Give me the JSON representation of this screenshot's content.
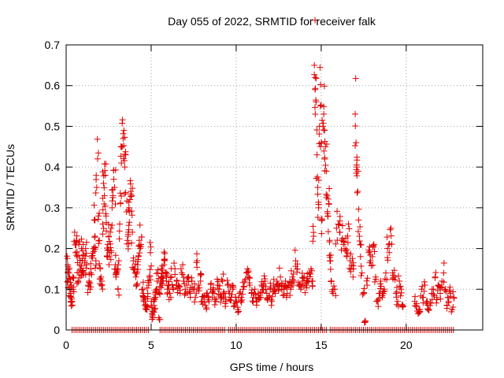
{
  "chart_data": {
    "type": "scatter",
    "title": "Day 055 of 2022, SRMTID for receiver falk",
    "xlabel": "GPS time / hours",
    "ylabel": "SRMTID / TECUs",
    "xlim": [
      0,
      24.5
    ],
    "ylim": [
      0,
      0.7
    ],
    "xticks": [
      0,
      5,
      10,
      15,
      20
    ],
    "yticks": [
      0,
      0.1,
      0.2,
      0.3,
      0.4,
      0.5,
      0.6,
      0.7
    ],
    "xtick_labels": [
      "0",
      "5",
      "10",
      "15",
      "20"
    ],
    "ytick_labels": [
      "0",
      "0.1",
      "0.2",
      "0.3",
      "0.4",
      "0.5",
      "0.6",
      "0.7"
    ],
    "grid": true,
    "marker": "+",
    "series_color": "#e00000",
    "baseline_zero": {
      "x_start": 0.35,
      "x_end": 22.8,
      "step": 0.115,
      "gaps": [
        [
          4.9,
          5.45
        ],
        [
          9.35,
          9.55
        ],
        [
          15.4,
          15.5
        ]
      ]
    },
    "series": [
      {
        "name": "SRMTID",
        "points": [
          [
            0.1,
            0.12
          ],
          [
            0.1,
            0.16
          ],
          [
            0.15,
            0.14
          ],
          [
            0.2,
            0.1
          ],
          [
            0.2,
            0.13
          ],
          [
            0.25,
            0.09
          ],
          [
            0.3,
            0.08
          ],
          [
            0.3,
            0.11
          ],
          [
            0.35,
            0.07
          ],
          [
            0.4,
            0.1
          ],
          [
            0.4,
            0.13
          ],
          [
            0.5,
            0.24
          ],
          [
            0.55,
            0.19
          ],
          [
            0.6,
            0.22
          ],
          [
            0.65,
            0.18
          ],
          [
            0.7,
            0.12
          ],
          [
            0.75,
            0.21
          ],
          [
            0.8,
            0.16
          ],
          [
            0.85,
            0.15
          ],
          [
            0.9,
            0.2
          ],
          [
            0.95,
            0.17
          ],
          [
            1.0,
            0.21
          ],
          [
            1.05,
            0.14
          ],
          [
            1.1,
            0.17
          ],
          [
            1.15,
            0.2
          ],
          [
            1.2,
            0.16
          ],
          [
            1.3,
            0.11
          ],
          [
            1.35,
            0.12
          ],
          [
            1.4,
            0.1
          ],
          [
            1.45,
            0.14
          ],
          [
            1.5,
            0.18
          ],
          [
            1.6,
            0.2
          ],
          [
            1.65,
            0.27
          ],
          [
            1.7,
            0.23
          ],
          [
            1.75,
            0.17
          ],
          [
            1.8,
            0.35
          ],
          [
            1.85,
            0.42
          ],
          [
            1.9,
            0.28
          ],
          [
            1.95,
            0.22
          ],
          [
            2.0,
            0.15
          ],
          [
            2.05,
            0.13
          ],
          [
            2.1,
            0.12
          ],
          [
            2.15,
            0.26
          ],
          [
            2.2,
            0.36
          ],
          [
            2.25,
            0.33
          ],
          [
            2.3,
            0.38
          ],
          [
            2.35,
            0.28
          ],
          [
            2.4,
            0.18
          ],
          [
            2.45,
            0.21
          ],
          [
            2.5,
            0.23
          ],
          [
            2.55,
            0.19
          ],
          [
            2.6,
            0.24
          ],
          [
            2.65,
            0.19
          ],
          [
            2.7,
            0.3
          ],
          [
            2.75,
            0.33
          ],
          [
            2.8,
            0.37
          ],
          [
            2.85,
            0.35
          ],
          [
            2.9,
            0.16
          ],
          [
            2.95,
            0.14
          ],
          [
            3.0,
            0.15
          ],
          [
            3.05,
            0.1
          ],
          [
            3.1,
            0.17
          ],
          [
            3.15,
            0.26
          ],
          [
            3.2,
            0.31
          ],
          [
            3.25,
            0.41
          ],
          [
            3.3,
            0.45
          ],
          [
            3.35,
            0.47
          ],
          [
            3.4,
            0.49
          ],
          [
            3.45,
            0.4
          ],
          [
            3.5,
            0.43
          ],
          [
            3.55,
            0.29
          ],
          [
            3.6,
            0.22
          ],
          [
            3.65,
            0.24
          ],
          [
            3.7,
            0.3
          ],
          [
            3.75,
            0.32
          ],
          [
            3.8,
            0.34
          ],
          [
            3.85,
            0.33
          ],
          [
            3.9,
            0.24
          ],
          [
            3.95,
            0.17
          ],
          [
            4.0,
            0.15
          ],
          [
            4.05,
            0.14
          ],
          [
            4.1,
            0.13
          ],
          [
            4.15,
            0.11
          ],
          [
            4.2,
            0.16
          ],
          [
            4.25,
            0.18
          ],
          [
            4.3,
            0.22
          ],
          [
            4.35,
            0.2
          ],
          [
            4.4,
            0.21
          ],
          [
            4.5,
            0.1
          ],
          [
            4.55,
            0.09
          ],
          [
            4.6,
            0.08
          ],
          [
            4.65,
            0.07
          ],
          [
            4.7,
            0.06
          ],
          [
            4.75,
            0.05
          ],
          [
            4.8,
            0.09
          ],
          [
            4.85,
            0.11
          ],
          [
            4.9,
            0.13
          ],
          [
            4.95,
            0.19
          ],
          [
            5.0,
            0.06
          ],
          [
            5.05,
            0.04
          ],
          [
            5.1,
            0.03
          ],
          [
            5.15,
            0.07
          ],
          [
            5.2,
            0.05
          ],
          [
            5.25,
            0.08
          ],
          [
            5.3,
            0.1
          ],
          [
            5.35,
            0.12
          ],
          [
            5.4,
            0.14
          ],
          [
            5.45,
            0.03
          ],
          [
            5.5,
            0.09
          ],
          [
            5.55,
            0.12
          ],
          [
            5.6,
            0.15
          ],
          [
            5.65,
            0.11
          ],
          [
            5.7,
            0.13
          ],
          [
            5.75,
            0.16
          ],
          [
            5.8,
            0.17
          ],
          [
            5.85,
            0.14
          ],
          [
            5.9,
            0.12
          ],
          [
            5.95,
            0.1
          ],
          [
            6.0,
            0.11
          ],
          [
            6.1,
            0.09
          ],
          [
            6.2,
            0.13
          ],
          [
            6.3,
            0.1
          ],
          [
            6.4,
            0.15
          ],
          [
            6.5,
            0.12
          ],
          [
            6.6,
            0.11
          ],
          [
            6.7,
            0.09
          ],
          [
            6.8,
            0.14
          ],
          [
            6.9,
            0.12
          ],
          [
            7.0,
            0.1
          ],
          [
            7.1,
            0.11
          ],
          [
            7.2,
            0.13
          ],
          [
            7.3,
            0.09
          ],
          [
            7.4,
            0.12
          ],
          [
            7.5,
            0.1
          ],
          [
            7.6,
            0.08
          ],
          [
            7.7,
            0.17
          ],
          [
            7.8,
            0.11
          ],
          [
            7.9,
            0.12
          ],
          [
            8.0,
            0.07
          ],
          [
            8.1,
            0.08
          ],
          [
            8.2,
            0.06
          ],
          [
            8.3,
            0.09
          ],
          [
            8.4,
            0.07
          ],
          [
            8.5,
            0.1
          ],
          [
            8.6,
            0.08
          ],
          [
            8.7,
            0.09
          ],
          [
            8.8,
            0.07
          ],
          [
            8.9,
            0.11
          ],
          [
            9.0,
            0.1
          ],
          [
            9.1,
            0.08
          ],
          [
            9.2,
            0.12
          ],
          [
            9.3,
            0.09
          ],
          [
            9.4,
            0.07
          ],
          [
            9.5,
            0.11
          ],
          [
            9.6,
            0.09
          ],
          [
            9.7,
            0.08
          ],
          [
            9.8,
            0.1
          ],
          [
            9.9,
            0.06
          ],
          [
            10.0,
            0.07
          ],
          [
            10.1,
            0.05
          ],
          [
            10.2,
            0.09
          ],
          [
            10.3,
            0.08
          ],
          [
            10.4,
            0.1
          ],
          [
            10.5,
            0.12
          ],
          [
            10.6,
            0.14
          ],
          [
            10.7,
            0.13
          ],
          [
            10.8,
            0.11
          ],
          [
            10.9,
            0.09
          ],
          [
            11.0,
            0.08
          ],
          [
            11.1,
            0.1
          ],
          [
            11.2,
            0.07
          ],
          [
            11.3,
            0.09
          ],
          [
            11.4,
            0.08
          ],
          [
            11.5,
            0.11
          ],
          [
            11.6,
            0.1
          ],
          [
            11.7,
            0.12
          ],
          [
            11.8,
            0.09
          ],
          [
            11.9,
            0.08
          ],
          [
            12.0,
            0.1
          ],
          [
            12.1,
            0.07
          ],
          [
            12.2,
            0.11
          ],
          [
            12.3,
            0.09
          ],
          [
            12.4,
            0.12
          ],
          [
            12.5,
            0.1
          ],
          [
            12.6,
            0.13
          ],
          [
            12.7,
            0.11
          ],
          [
            12.8,
            0.1
          ],
          [
            12.9,
            0.12
          ],
          [
            13.0,
            0.09
          ],
          [
            13.1,
            0.11
          ],
          [
            13.2,
            0.1
          ],
          [
            13.3,
            0.13
          ],
          [
            13.4,
            0.12
          ],
          [
            13.5,
            0.17
          ],
          [
            13.6,
            0.15
          ],
          [
            13.7,
            0.11
          ],
          [
            13.8,
            0.1
          ],
          [
            13.9,
            0.12
          ],
          [
            14.0,
            0.13
          ],
          [
            14.1,
            0.11
          ],
          [
            14.2,
            0.12
          ],
          [
            14.3,
            0.14
          ],
          [
            14.4,
            0.15
          ],
          [
            14.5,
            0.12
          ],
          [
            14.55,
            0.23
          ],
          [
            14.6,
            0.65
          ],
          [
            14.65,
            0.62
          ],
          [
            14.7,
            0.56
          ],
          [
            14.75,
            0.43
          ],
          [
            14.8,
            0.35
          ],
          [
            14.85,
            0.3
          ],
          [
            14.9,
            0.5
          ],
          [
            14.95,
            0.55
          ],
          [
            15.0,
            0.46
          ],
          [
            15.05,
            0.27
          ],
          [
            15.1,
            0.5
          ],
          [
            15.15,
            0.53
          ],
          [
            15.2,
            0.49
          ],
          [
            15.25,
            0.45
          ],
          [
            15.3,
            0.39
          ],
          [
            15.35,
            0.33
          ],
          [
            15.4,
            0.28
          ],
          [
            15.45,
            0.31
          ],
          [
            15.5,
            0.22
          ],
          [
            15.55,
            0.17
          ],
          [
            15.6,
            0.12
          ],
          [
            15.7,
            0.09
          ],
          [
            15.8,
            0.1
          ],
          [
            15.9,
            0.25
          ],
          [
            16.0,
            0.26
          ],
          [
            16.1,
            0.24
          ],
          [
            16.2,
            0.22
          ],
          [
            16.3,
            0.21
          ],
          [
            16.4,
            0.2
          ],
          [
            16.5,
            0.18
          ],
          [
            16.6,
            0.26
          ],
          [
            16.7,
            0.17
          ],
          [
            16.8,
            0.16
          ],
          [
            16.9,
            0.15
          ],
          [
            17.0,
            0.53
          ],
          [
            17.05,
            0.46
          ],
          [
            17.1,
            0.4
          ],
          [
            17.15,
            0.34
          ],
          [
            17.2,
            0.27
          ],
          [
            17.25,
            0.23
          ],
          [
            17.3,
            0.21
          ],
          [
            17.4,
            0.14
          ],
          [
            17.5,
            0.09
          ],
          [
            17.6,
            0.02
          ],
          [
            17.7,
            0.11
          ],
          [
            17.8,
            0.19
          ],
          [
            17.9,
            0.17
          ],
          [
            18.0,
            0.18
          ],
          [
            18.1,
            0.21
          ],
          [
            18.2,
            0.13
          ],
          [
            18.3,
            0.07
          ],
          [
            18.4,
            0.09
          ],
          [
            18.5,
            0.12
          ],
          [
            18.6,
            0.08
          ],
          [
            18.7,
            0.1
          ],
          [
            18.8,
            0.14
          ],
          [
            18.9,
            0.2
          ],
          [
            19.0,
            0.19
          ],
          [
            19.1,
            0.25
          ],
          [
            19.2,
            0.14
          ],
          [
            19.3,
            0.13
          ],
          [
            19.4,
            0.09
          ],
          [
            19.5,
            0.07
          ],
          [
            19.6,
            0.12
          ],
          [
            19.7,
            0.1
          ],
          [
            19.8,
            0.06
          ],
          [
            20.5,
            0.07
          ],
          [
            20.6,
            0.06
          ],
          [
            20.7,
            0.04
          ],
          [
            20.8,
            0.05
          ],
          [
            20.9,
            0.1
          ],
          [
            21.0,
            0.08
          ],
          [
            21.1,
            0.11
          ],
          [
            21.2,
            0.07
          ],
          [
            21.3,
            0.05
          ],
          [
            21.4,
            0.06
          ],
          [
            21.5,
            0.09
          ],
          [
            21.6,
            0.1
          ],
          [
            21.7,
            0.13
          ],
          [
            21.8,
            0.08
          ],
          [
            21.9,
            0.11
          ],
          [
            22.0,
            0.09
          ],
          [
            22.1,
            0.12
          ],
          [
            22.2,
            0.14
          ],
          [
            22.3,
            0.1
          ],
          [
            22.4,
            0.06
          ],
          [
            22.5,
            0.07
          ],
          [
            22.6,
            0.09
          ],
          [
            22.7,
            0.05
          ],
          [
            22.8,
            0.08
          ]
        ]
      }
    ]
  }
}
